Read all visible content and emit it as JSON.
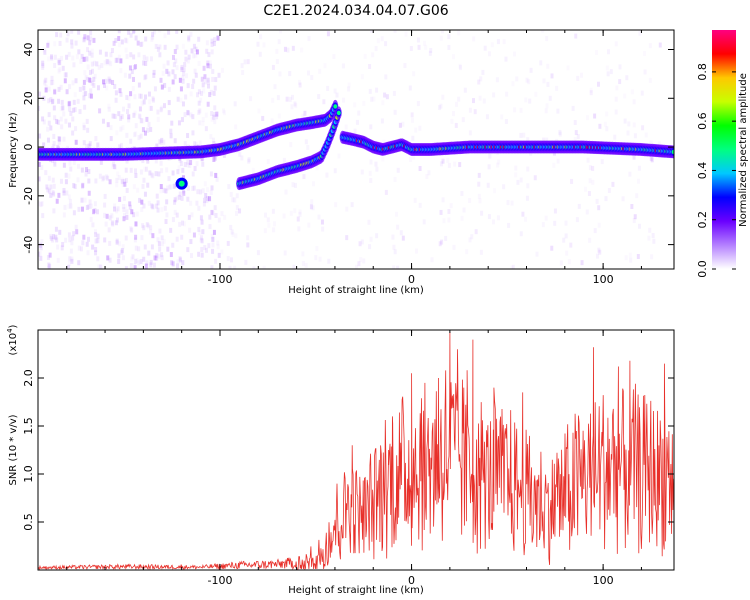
{
  "title": "C2E1.2024.034.04.07.G06",
  "chart_data": [
    {
      "type": "heatmap",
      "xlabel": "Height of straight line (km)",
      "ylabel": "Frequency (Hz)",
      "xlim": [
        -195,
        137
      ],
      "ylim": [
        -50,
        48
      ],
      "x_tick_labels": [
        "-100",
        "0",
        "100"
      ],
      "y_tick_labels": [
        "40",
        "20",
        "0",
        "-20",
        "-40"
      ],
      "colorbar": {
        "label": "Normalized spectral amplitude",
        "range": [
          0,
          0.97
        ],
        "tick_labels": [
          "0.0",
          "0.2",
          "0.4",
          "0.6",
          "0.8"
        ],
        "colors": [
          "#ffffff",
          "#b480ff",
          "#6a00ff",
          "#0000ff",
          "#00c8ff",
          "#00ff80",
          "#00ff00",
          "#c8ff00",
          "#ffc800",
          "#ff0000",
          "#ff0080"
        ]
      },
      "traces": [
        {
          "name": "main",
          "points": [
            [
              -195,
              -3
            ],
            [
              -150,
              -3
            ],
            [
              -110,
              -2
            ],
            [
              -100,
              -1
            ],
            [
              -90,
              1
            ],
            [
              -80,
              4
            ],
            [
              -70,
              7
            ],
            [
              -60,
              9
            ],
            [
              -52,
              10
            ],
            [
              -45,
              11
            ],
            [
              -42,
              13
            ],
            [
              -39,
              18
            ]
          ]
        },
        {
          "name": "lower branch",
          "points": [
            [
              -90,
              -15
            ],
            [
              -80,
              -13
            ],
            [
              -70,
              -10
            ],
            [
              -60,
              -8
            ],
            [
              -52,
              -6
            ],
            [
              -47,
              -4
            ],
            [
              -44,
              1
            ],
            [
              -41,
              7
            ],
            [
              -38,
              14
            ]
          ]
        },
        {
          "name": "post",
          "points": [
            [
              -36,
              4
            ],
            [
              -30,
              3
            ],
            [
              -25,
              2
            ],
            [
              -20,
              0
            ],
            [
              -15,
              -1
            ],
            [
              -10,
              0
            ],
            [
              -5,
              1
            ],
            [
              0,
              -1
            ],
            [
              10,
              -1
            ],
            [
              30,
              0
            ],
            [
              60,
              0
            ],
            [
              90,
              0
            ],
            [
              120,
              -1
            ],
            [
              137,
              -2
            ]
          ]
        },
        {
          "name": "blob",
          "points": [
            [
              -120,
              -15
            ]
          ]
        }
      ]
    },
    {
      "type": "line",
      "xlabel": "Height of straight line (km)",
      "ylabel": "SNR (10 * v/v)",
      "multiplier_label": "(x10",
      "multiplier_exp": "4",
      "multiplier_close": ")",
      "xlim": [
        -195,
        137
      ],
      "ylim": [
        0,
        2.5
      ],
      "x_tick_labels": [
        "-100",
        "0",
        "100"
      ],
      "y_tick_labels": [
        "0.5",
        "1.0",
        "1.5",
        "2.0"
      ],
      "color": "#e8302a",
      "envelope": [
        {
          "x": -195,
          "y": 0.03
        },
        {
          "x": -150,
          "y": 0.05
        },
        {
          "x": -110,
          "y": 0.04
        },
        {
          "x": -90,
          "y": 0.08
        },
        {
          "x": -70,
          "y": 0.1
        },
        {
          "x": -55,
          "y": 0.15
        },
        {
          "x": -45,
          "y": 0.35
        },
        {
          "x": -38,
          "y": 0.7
        },
        {
          "x": -32,
          "y": 0.9
        },
        {
          "x": -25,
          "y": 0.7
        },
        {
          "x": -15,
          "y": 1.1
        },
        {
          "x": -5,
          "y": 1.2
        },
        {
          "x": 5,
          "y": 1.3
        },
        {
          "x": 20,
          "y": 1.5
        },
        {
          "x": 35,
          "y": 1.2
        },
        {
          "x": 50,
          "y": 1.15
        },
        {
          "x": 60,
          "y": 1.0
        },
        {
          "x": 70,
          "y": 0.85
        },
        {
          "x": 80,
          "y": 1.0
        },
        {
          "x": 90,
          "y": 1.2
        },
        {
          "x": 100,
          "y": 1.3
        },
        {
          "x": 110,
          "y": 1.35
        },
        {
          "x": 120,
          "y": 1.25
        },
        {
          "x": 137,
          "y": 1.2
        }
      ],
      "peaks": [
        {
          "x": -31,
          "y": 1.3
        },
        {
          "x": -12,
          "y": 1.25
        },
        {
          "x": -10,
          "y": 1.6
        },
        {
          "x": -5,
          "y": 1.7
        },
        {
          "x": 0,
          "y": 2.05
        },
        {
          "x": 5,
          "y": 1.5
        },
        {
          "x": 14,
          "y": 2.0
        },
        {
          "x": 20,
          "y": 2.48
        },
        {
          "x": 24,
          "y": 2.3
        },
        {
          "x": 29,
          "y": 2.08
        },
        {
          "x": 32,
          "y": 2.4
        },
        {
          "x": 43,
          "y": 1.9
        },
        {
          "x": 58,
          "y": 1.85
        },
        {
          "x": 95,
          "y": 2.32
        },
        {
          "x": 108,
          "y": 2.12
        },
        {
          "x": 114,
          "y": 2.18
        },
        {
          "x": 132,
          "y": 2.15
        }
      ]
    }
  ]
}
